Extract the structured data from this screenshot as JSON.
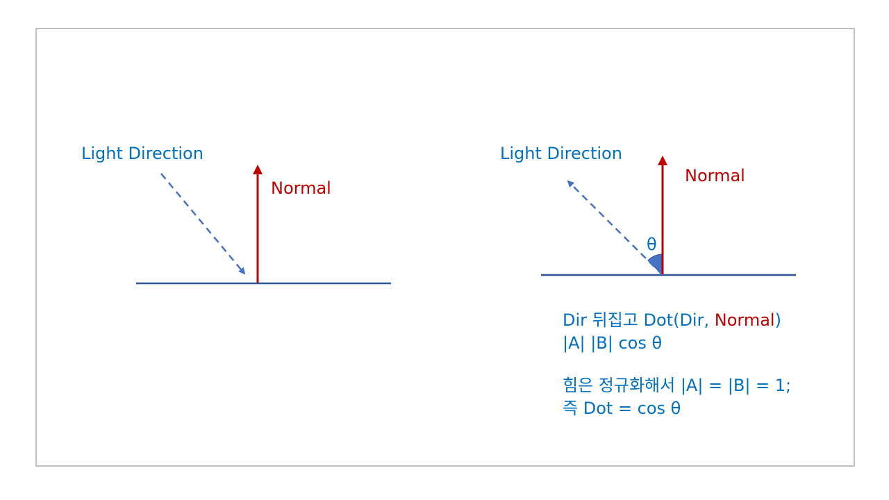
{
  "colors": {
    "light_direction": "#4472c4",
    "normal": "#c00000",
    "surface": "#2f5597",
    "text_blue": "#0070c0",
    "text_red": "#c00000",
    "angle_fill": "#4472c4"
  },
  "left_panel": {
    "light_label": "Light Direction",
    "normal_label": "Normal"
  },
  "right_panel": {
    "light_label": "Light Direction",
    "normal_label": "Normal",
    "angle_label": "θ"
  },
  "explanation": {
    "line1_prefix": "Dir 뒤집고 Dot(Dir, ",
    "line1_normal": "Normal",
    "line1_suffix": ")",
    "line2": "|A| |B| cos θ",
    "line3": "힘은 정규화해서 |A| = |B| = 1;",
    "line4": "즉 Dot = cos θ"
  }
}
